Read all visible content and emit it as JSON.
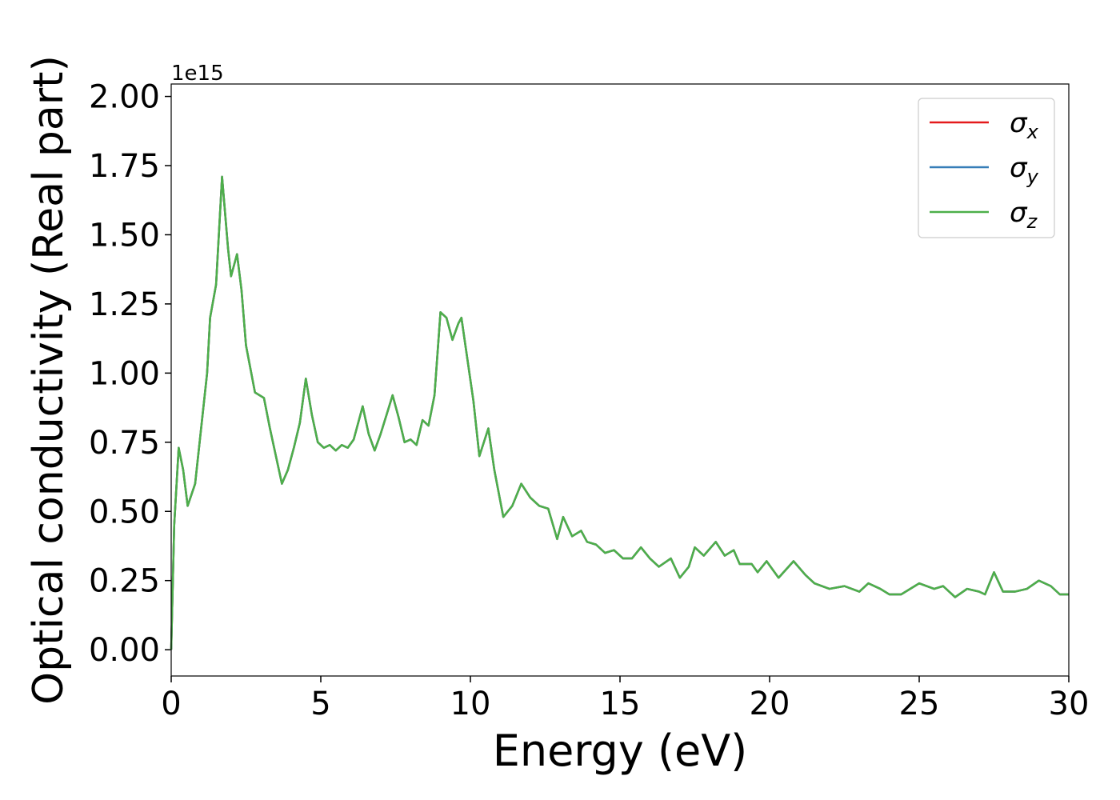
{
  "chart_data": {
    "type": "line",
    "xlabel": "Energy (eV)",
    "ylabel": "Optical conductivity (Real part)",
    "y_offset_label": "1e15",
    "x": [
      0,
      0.1,
      0.25,
      0.4,
      0.55,
      0.8,
      1.0,
      1.2,
      1.3,
      1.5,
      1.7,
      1.9,
      2.0,
      2.2,
      2.35,
      2.5,
      2.8,
      3.1,
      3.3,
      3.5,
      3.7,
      3.9,
      4.1,
      4.3,
      4.5,
      4.7,
      4.9,
      5.1,
      5.3,
      5.5,
      5.7,
      5.9,
      6.1,
      6.4,
      6.6,
      6.8,
      7.0,
      7.2,
      7.4,
      7.6,
      7.8,
      8.0,
      8.2,
      8.4,
      8.6,
      8.8,
      9.0,
      9.2,
      9.4,
      9.6,
      9.7,
      9.9,
      10.1,
      10.3,
      10.6,
      10.8,
      11.1,
      11.4,
      11.7,
      12.0,
      12.3,
      12.6,
      12.9,
      13.1,
      13.4,
      13.7,
      13.9,
      14.2,
      14.5,
      14.8,
      15.1,
      15.4,
      15.7,
      16.0,
      16.3,
      16.7,
      17.0,
      17.3,
      17.5,
      17.8,
      18.2,
      18.5,
      18.8,
      19.0,
      19.4,
      19.6,
      19.9,
      20.3,
      20.8,
      21.2,
      21.5,
      22.0,
      22.5,
      23.0,
      23.3,
      23.7,
      24.0,
      24.4,
      25.0,
      25.5,
      25.8,
      26.2,
      26.6,
      27.0,
      27.2,
      27.5,
      27.8,
      28.2,
      28.6,
      29.0,
      29.4,
      29.7,
      30.0
    ],
    "series": [
      {
        "name": "σx",
        "color": "#e41a1c",
        "values": [
          0,
          0.45,
          0.73,
          0.65,
          0.52,
          0.6,
          0.8,
          1.0,
          1.2,
          1.32,
          1.71,
          1.45,
          1.35,
          1.43,
          1.3,
          1.1,
          0.93,
          0.91,
          0.8,
          0.7,
          0.6,
          0.65,
          0.73,
          0.82,
          0.98,
          0.85,
          0.75,
          0.73,
          0.74,
          0.72,
          0.74,
          0.73,
          0.76,
          0.88,
          0.78,
          0.72,
          0.78,
          0.85,
          0.92,
          0.84,
          0.75,
          0.76,
          0.74,
          0.83,
          0.81,
          0.92,
          1.22,
          1.2,
          1.12,
          1.18,
          1.2,
          1.05,
          0.9,
          0.7,
          0.8,
          0.65,
          0.48,
          0.52,
          0.6,
          0.55,
          0.52,
          0.51,
          0.4,
          0.48,
          0.41,
          0.43,
          0.39,
          0.38,
          0.35,
          0.36,
          0.33,
          0.33,
          0.37,
          0.33,
          0.3,
          0.33,
          0.26,
          0.3,
          0.37,
          0.34,
          0.39,
          0.34,
          0.36,
          0.31,
          0.31,
          0.28,
          0.32,
          0.26,
          0.32,
          0.27,
          0.24,
          0.22,
          0.23,
          0.21,
          0.24,
          0.22,
          0.2,
          0.2,
          0.24,
          0.22,
          0.23,
          0.19,
          0.22,
          0.21,
          0.2,
          0.28,
          0.21,
          0.21,
          0.22,
          0.25,
          0.23,
          0.2,
          0.2
        ]
      },
      {
        "name": "σy",
        "color": "#377eb8",
        "values": [
          0,
          0.45,
          0.73,
          0.65,
          0.52,
          0.6,
          0.8,
          1.0,
          1.2,
          1.32,
          1.71,
          1.45,
          1.35,
          1.43,
          1.3,
          1.1,
          0.93,
          0.91,
          0.8,
          0.7,
          0.6,
          0.65,
          0.73,
          0.82,
          0.98,
          0.85,
          0.75,
          0.73,
          0.74,
          0.72,
          0.74,
          0.73,
          0.76,
          0.88,
          0.78,
          0.72,
          0.78,
          0.85,
          0.92,
          0.84,
          0.75,
          0.76,
          0.74,
          0.83,
          0.81,
          0.92,
          1.22,
          1.2,
          1.12,
          1.18,
          1.2,
          1.05,
          0.9,
          0.7,
          0.8,
          0.65,
          0.48,
          0.52,
          0.6,
          0.55,
          0.52,
          0.51,
          0.4,
          0.48,
          0.41,
          0.43,
          0.39,
          0.38,
          0.35,
          0.36,
          0.33,
          0.33,
          0.37,
          0.33,
          0.3,
          0.33,
          0.26,
          0.3,
          0.37,
          0.34,
          0.39,
          0.34,
          0.36,
          0.31,
          0.31,
          0.28,
          0.32,
          0.26,
          0.32,
          0.27,
          0.24,
          0.22,
          0.23,
          0.21,
          0.24,
          0.22,
          0.2,
          0.2,
          0.24,
          0.22,
          0.23,
          0.19,
          0.22,
          0.21,
          0.2,
          0.28,
          0.21,
          0.21,
          0.22,
          0.25,
          0.23,
          0.2,
          0.2
        ]
      },
      {
        "name": "σz",
        "color": "#4daf4a",
        "values": [
          0,
          0.45,
          0.73,
          0.65,
          0.52,
          0.6,
          0.8,
          1.0,
          1.2,
          1.32,
          1.71,
          1.45,
          1.35,
          1.43,
          1.3,
          1.1,
          0.93,
          0.91,
          0.8,
          0.7,
          0.6,
          0.65,
          0.73,
          0.82,
          0.98,
          0.85,
          0.75,
          0.73,
          0.74,
          0.72,
          0.74,
          0.73,
          0.76,
          0.88,
          0.78,
          0.72,
          0.78,
          0.85,
          0.92,
          0.84,
          0.75,
          0.76,
          0.74,
          0.83,
          0.81,
          0.92,
          1.22,
          1.2,
          1.12,
          1.18,
          1.2,
          1.05,
          0.9,
          0.7,
          0.8,
          0.65,
          0.48,
          0.52,
          0.6,
          0.55,
          0.52,
          0.51,
          0.4,
          0.48,
          0.41,
          0.43,
          0.39,
          0.38,
          0.35,
          0.36,
          0.33,
          0.33,
          0.37,
          0.33,
          0.3,
          0.33,
          0.26,
          0.3,
          0.37,
          0.34,
          0.39,
          0.34,
          0.36,
          0.31,
          0.31,
          0.28,
          0.32,
          0.26,
          0.32,
          0.27,
          0.24,
          0.22,
          0.23,
          0.21,
          0.24,
          0.22,
          0.2,
          0.2,
          0.24,
          0.22,
          0.23,
          0.19,
          0.22,
          0.21,
          0.2,
          0.28,
          0.21,
          0.21,
          0.22,
          0.25,
          0.23,
          0.2,
          0.2
        ]
      }
    ],
    "xlim": [
      0,
      30
    ],
    "xticks": [
      0,
      5,
      10,
      15,
      20,
      25,
      30
    ],
    "ylim": [
      -0.095,
      2.045
    ],
    "yticks": [
      {
        "value": 0,
        "label": "0.00"
      },
      {
        "value": 0.25,
        "label": "0.25"
      },
      {
        "value": 0.5,
        "label": "0.50"
      },
      {
        "value": 0.75,
        "label": "0.75"
      },
      {
        "value": 1,
        "label": "1.00"
      },
      {
        "value": 1.25,
        "label": "1.25"
      },
      {
        "value": 1.5,
        "label": "1.50"
      },
      {
        "value": 1.75,
        "label": "1.75"
      },
      {
        "value": 2,
        "label": "2.00"
      }
    ],
    "grid": false,
    "legend": "upper right"
  }
}
